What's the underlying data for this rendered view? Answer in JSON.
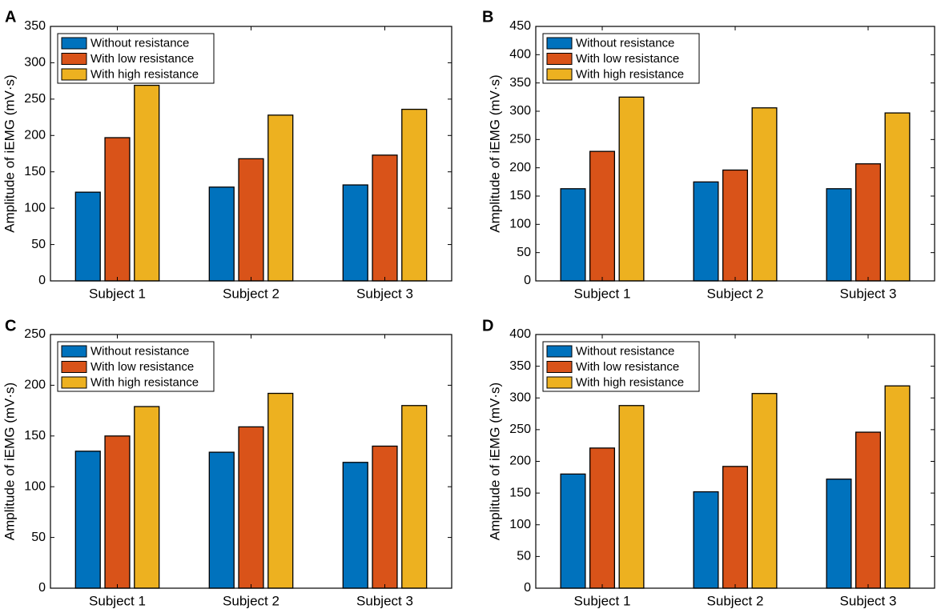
{
  "colors": {
    "without": "#0072BD",
    "low": "#D95319",
    "high": "#EDB120",
    "axis": "#000000",
    "background": "#ffffff"
  },
  "chart_data": [
    {
      "panel": "A",
      "type": "bar",
      "categories": [
        "Subject 1",
        "Subject 2",
        "Subject 3"
      ],
      "series": [
        {
          "name": "Without resistance",
          "values": [
            122,
            129,
            132
          ]
        },
        {
          "name": "With low resistance",
          "values": [
            197,
            168,
            173
          ]
        },
        {
          "name": "With high resistance",
          "values": [
            269,
            228,
            236
          ]
        }
      ],
      "ylabel": "Amplitude of iEMG (mV·s)",
      "xlabel": "",
      "ylim": [
        0,
        350
      ],
      "yticks": [
        0,
        50,
        100,
        150,
        200,
        250,
        300,
        350
      ],
      "legend": "top-left",
      "grid": false
    },
    {
      "panel": "B",
      "type": "bar",
      "categories": [
        "Subject 1",
        "Subject 2",
        "Subject 3"
      ],
      "series": [
        {
          "name": "Without resistance",
          "values": [
            163,
            175,
            163
          ]
        },
        {
          "name": "With low resistance",
          "values": [
            229,
            196,
            207
          ]
        },
        {
          "name": "With high resistance",
          "values": [
            325,
            306,
            297
          ]
        }
      ],
      "ylabel": "Amplitude of iEMG (mV·s)",
      "xlabel": "",
      "ylim": [
        0,
        450
      ],
      "yticks": [
        0,
        50,
        100,
        150,
        200,
        250,
        300,
        350,
        400,
        450
      ],
      "legend": "top-left",
      "grid": false
    },
    {
      "panel": "C",
      "type": "bar",
      "categories": [
        "Subject 1",
        "Subject 2",
        "Subject 3"
      ],
      "series": [
        {
          "name": "Without resistance",
          "values": [
            135,
            134,
            124
          ]
        },
        {
          "name": "With low resistance",
          "values": [
            150,
            159,
            140
          ]
        },
        {
          "name": "With high resistance",
          "values": [
            179,
            192,
            180
          ]
        }
      ],
      "ylabel": "Amplitude of iEMG (mV·s)",
      "xlabel": "",
      "ylim": [
        0,
        250
      ],
      "yticks": [
        0,
        50,
        100,
        150,
        200,
        250
      ],
      "legend": "top-left",
      "grid": false
    },
    {
      "panel": "D",
      "type": "bar",
      "categories": [
        "Subject 1",
        "Subject 2",
        "Subject 3"
      ],
      "series": [
        {
          "name": "Without resistance",
          "values": [
            180,
            152,
            172
          ]
        },
        {
          "name": "With low resistance",
          "values": [
            221,
            192,
            246
          ]
        },
        {
          "name": "With high resistance",
          "values": [
            288,
            307,
            319
          ]
        }
      ],
      "ylabel": "Amplitude of iEMG (mV·s)",
      "xlabel": "",
      "ylim": [
        0,
        400
      ],
      "yticks": [
        0,
        50,
        100,
        150,
        200,
        250,
        300,
        350,
        400
      ],
      "legend": "top-left",
      "grid": false
    }
  ]
}
